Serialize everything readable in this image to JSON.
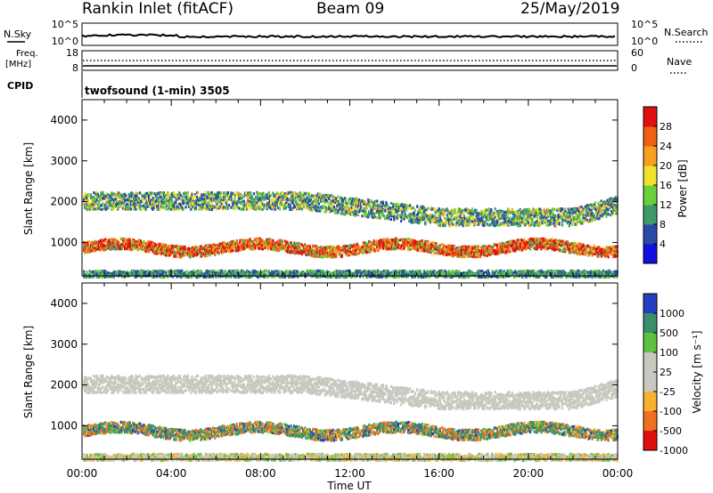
{
  "header": {
    "station": "Rankin Inlet (fitACF)",
    "beam": "Beam 09",
    "date": "25/May/2019"
  },
  "status_panels": {
    "nsky_label": "N.Sky",
    "nsearch_label": "N.Search",
    "nsky_ticks": [
      "10^5",
      "10^0"
    ],
    "nsearch_ticks": [
      "10^5",
      "10^0"
    ],
    "freq_label_1": "Freq.",
    "freq_label_2": "[MHz]",
    "freq_ticks": [
      "18",
      "8"
    ],
    "nave_label": "Nave",
    "nave_ticks": [
      "60",
      "0"
    ],
    "cpid_label": "CPID",
    "cpid_text": "twofsound (1-min) 3505"
  },
  "colors": {
    "power": [
      "#1010e0",
      "#2a4aa8",
      "#3f9a6a",
      "#6ccf3a",
      "#f0e030",
      "#f7a020",
      "#f06010",
      "#e01010"
    ],
    "velocity": [
      "#2040c0",
      "#3a8f6a",
      "#60c040",
      "#c8c8c0",
      "#c8c8c0",
      "#f7b030",
      "#f07020",
      "#e01010"
    ]
  },
  "chart_data": [
    {
      "type": "heatmap",
      "title": "Power",
      "xlabel": "",
      "ylabel": "Slant Range [km]",
      "x_ticks": [
        "00:00",
        "04:00",
        "08:00",
        "12:00",
        "16:00",
        "20:00",
        "00:00"
      ],
      "y_ticks": [
        "1000",
        "2000",
        "3000",
        "4000"
      ],
      "ylim": [
        180,
        4500
      ],
      "colorbar": {
        "label": "Power [dB]",
        "ticks": [
          "4",
          "8",
          "12",
          "16",
          "20",
          "24",
          "28"
        ]
      }
    },
    {
      "type": "heatmap",
      "title": "Velocity",
      "xlabel": "Time UT",
      "ylabel": "Slant Range [km]",
      "x_ticks": [
        "00:00",
        "04:00",
        "08:00",
        "12:00",
        "16:00",
        "20:00",
        "00:00"
      ],
      "y_ticks": [
        "1000",
        "2000",
        "3000",
        "4000"
      ],
      "ylim": [
        180,
        4500
      ],
      "colorbar": {
        "label": "Velocity [m s⁻¹]",
        "ticks": [
          "1000",
          "500",
          "100",
          "25",
          "-25",
          "-100",
          "-500",
          "-1000"
        ]
      }
    }
  ]
}
